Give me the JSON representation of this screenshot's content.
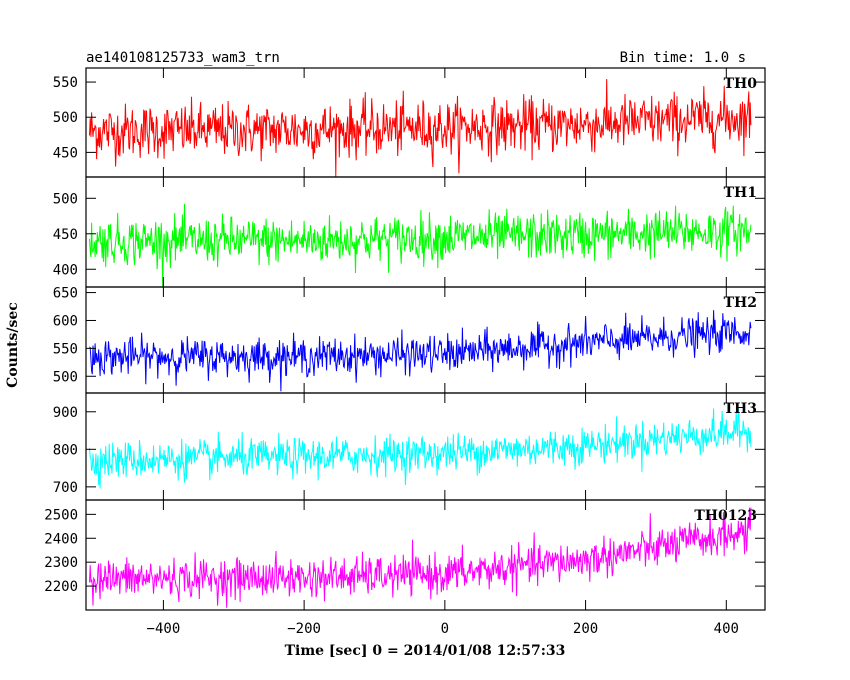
{
  "chart_data": {
    "type": "line",
    "title_left": "ae140108125733_wam3_trn",
    "title_right": "Bin time: 1.0 s",
    "xlabel": "Time [sec] 0 = 2014/01/08 12:57:33",
    "ylabel": "Counts/sec",
    "xlim": [
      -510,
      455
    ],
    "x_ticks": [
      -400,
      -200,
      0,
      200,
      400
    ],
    "x_tick_labels": [
      "−400",
      "−200",
      "0",
      "200",
      "400"
    ],
    "x_range_data": [
      -505,
      435
    ],
    "bin_time_s": 1.0,
    "panels": [
      {
        "label": "TH0",
        "color": "#ff0000",
        "ylim": [
          415,
          570
        ],
        "yticks": [
          450,
          500,
          550
        ],
        "trend": [
          [
            -505,
            480
          ],
          [
            -200,
            482
          ],
          [
            0,
            485
          ],
          [
            200,
            490
          ],
          [
            435,
            500
          ]
        ],
        "amplitude": 35
      },
      {
        "label": "TH1",
        "color": "#00ff00",
        "ylim": [
          375,
          530
        ],
        "yticks": [
          400,
          450,
          500
        ],
        "trend": [
          [
            -505,
            440
          ],
          [
            -200,
            440
          ],
          [
            0,
            445
          ],
          [
            200,
            448
          ],
          [
            435,
            455
          ]
        ],
        "amplitude": 30
      },
      {
        "label": "TH2",
        "color": "#0000ff",
        "ylim": [
          470,
          660
        ],
        "yticks": [
          500,
          550,
          600,
          650
        ],
        "trend": [
          [
            -505,
            535
          ],
          [
            -200,
            535
          ],
          [
            0,
            540
          ],
          [
            200,
            560
          ],
          [
            435,
            580
          ]
        ],
        "amplitude": 30
      },
      {
        "label": "TH3",
        "color": "#00ffff",
        "ylim": [
          665,
          950
        ],
        "yticks": [
          700,
          800,
          900
        ],
        "trend": [
          [
            -505,
            770
          ],
          [
            -200,
            780
          ],
          [
            0,
            790
          ],
          [
            200,
            810
          ],
          [
            435,
            850
          ]
        ],
        "amplitude": 45
      },
      {
        "label": "TH0123",
        "color": "#ff00ff",
        "ylim": [
          2100,
          2560
        ],
        "yticks": [
          2200,
          2300,
          2400,
          2500
        ],
        "trend": [
          [
            -505,
            2230
          ],
          [
            -200,
            2235
          ],
          [
            0,
            2250
          ],
          [
            200,
            2310
          ],
          [
            435,
            2430
          ]
        ],
        "amplitude": 75
      }
    ]
  }
}
